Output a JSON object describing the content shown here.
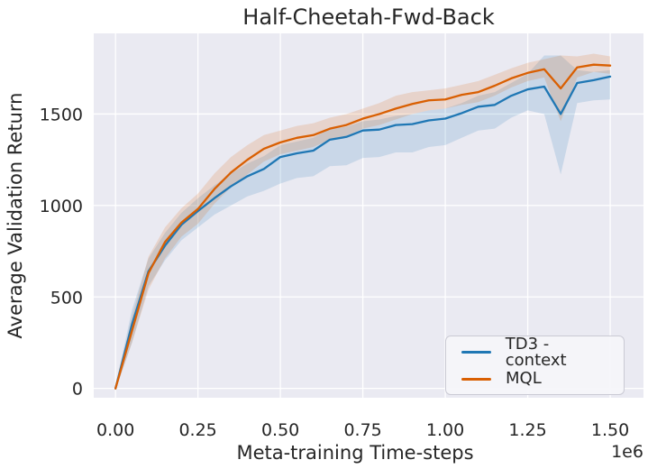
{
  "colors": {
    "figure_background": "#ffffff",
    "plot_background": "#eaeaf2",
    "grid": "#ffffff",
    "text": "#262626",
    "td3_blue": "#1f77b4",
    "mql_orange": "#d95f02"
  },
  "chart_data": {
    "type": "line",
    "title": "Half-Cheetah-Fwd-Back",
    "xlabel": "Meta-training Time-steps",
    "ylabel": "Average Validation Return",
    "x_offset_label": "1e6",
    "x_unit": "1e6",
    "grid": "on",
    "legend_position": "lower right",
    "xlim": [
      -0.066,
      1.601
    ],
    "ylim": [
      -51,
      1941
    ],
    "x_ticks": [
      "0.00",
      "0.25",
      "0.50",
      "0.75",
      "1.00",
      "1.25",
      "1.50"
    ],
    "x_tick_values": [
      0,
      0.25,
      0.5,
      0.75,
      1.0,
      1.25,
      1.5
    ],
    "y_ticks": [
      "0",
      "500",
      "1000",
      "1500"
    ],
    "y_tick_values": [
      0,
      500,
      1000,
      1500
    ],
    "x": [
      0,
      0.05,
      0.1,
      0.15,
      0.2,
      0.25,
      0.3,
      0.35,
      0.4,
      0.45,
      0.5,
      0.55,
      0.6,
      0.65,
      0.7,
      0.75,
      0.8,
      0.85,
      0.9,
      0.95,
      1.0,
      1.05,
      1.1,
      1.15,
      1.2,
      1.25,
      1.3,
      1.35,
      1.4,
      1.45,
      1.5
    ],
    "series": [
      {
        "name": "TD3 - context",
        "color": "#1f77b4",
        "values": [
          0,
          350,
          640,
          780,
          895,
          970,
          1040,
          1105,
          1160,
          1200,
          1265,
          1285,
          1300,
          1360,
          1375,
          1410,
          1415,
          1440,
          1445,
          1465,
          1475,
          1505,
          1540,
          1550,
          1600,
          1635,
          1650,
          1500,
          1670,
          1685,
          1705
        ],
        "band_lower": [
          -10,
          250,
          560,
          700,
          810,
          880,
          950,
          1000,
          1050,
          1080,
          1120,
          1150,
          1160,
          1215,
          1220,
          1260,
          1265,
          1290,
          1290,
          1320,
          1330,
          1370,
          1410,
          1420,
          1480,
          1520,
          1500,
          1170,
          1560,
          1575,
          1580
        ],
        "band_upper": [
          10,
          430,
          710,
          850,
          960,
          1040,
          1110,
          1175,
          1230,
          1270,
          1330,
          1350,
          1370,
          1420,
          1430,
          1460,
          1470,
          1490,
          1500,
          1520,
          1530,
          1560,
          1600,
          1620,
          1670,
          1720,
          1820,
          1820,
          1740,
          1730,
          1740
        ]
      },
      {
        "name": "MQL",
        "color": "#d95f02",
        "values": [
          0,
          315,
          630,
          800,
          907,
          981,
          1090,
          1180,
          1250,
          1310,
          1345,
          1370,
          1385,
          1420,
          1440,
          1475,
          1500,
          1530,
          1555,
          1575,
          1580,
          1605,
          1620,
          1655,
          1695,
          1725,
          1745,
          1640,
          1755,
          1770,
          1765
        ],
        "band_lower": [
          -10,
          250,
          540,
          710,
          830,
          900,
          1010,
          1100,
          1170,
          1240,
          1280,
          1300,
          1320,
          1360,
          1380,
          1420,
          1440,
          1470,
          1500,
          1520,
          1530,
          1550,
          1565,
          1600,
          1645,
          1680,
          1700,
          1460,
          1700,
          1730,
          1720
        ],
        "band_upper": [
          10,
          390,
          720,
          880,
          985,
          1065,
          1175,
          1265,
          1330,
          1385,
          1410,
          1435,
          1450,
          1480,
          1500,
          1530,
          1560,
          1600,
          1620,
          1630,
          1640,
          1660,
          1680,
          1715,
          1750,
          1780,
          1800,
          1820,
          1815,
          1830,
          1815
        ]
      }
    ]
  },
  "legend": {
    "entries": [
      {
        "label": "TD3 - context"
      },
      {
        "label": "MQL"
      }
    ]
  }
}
